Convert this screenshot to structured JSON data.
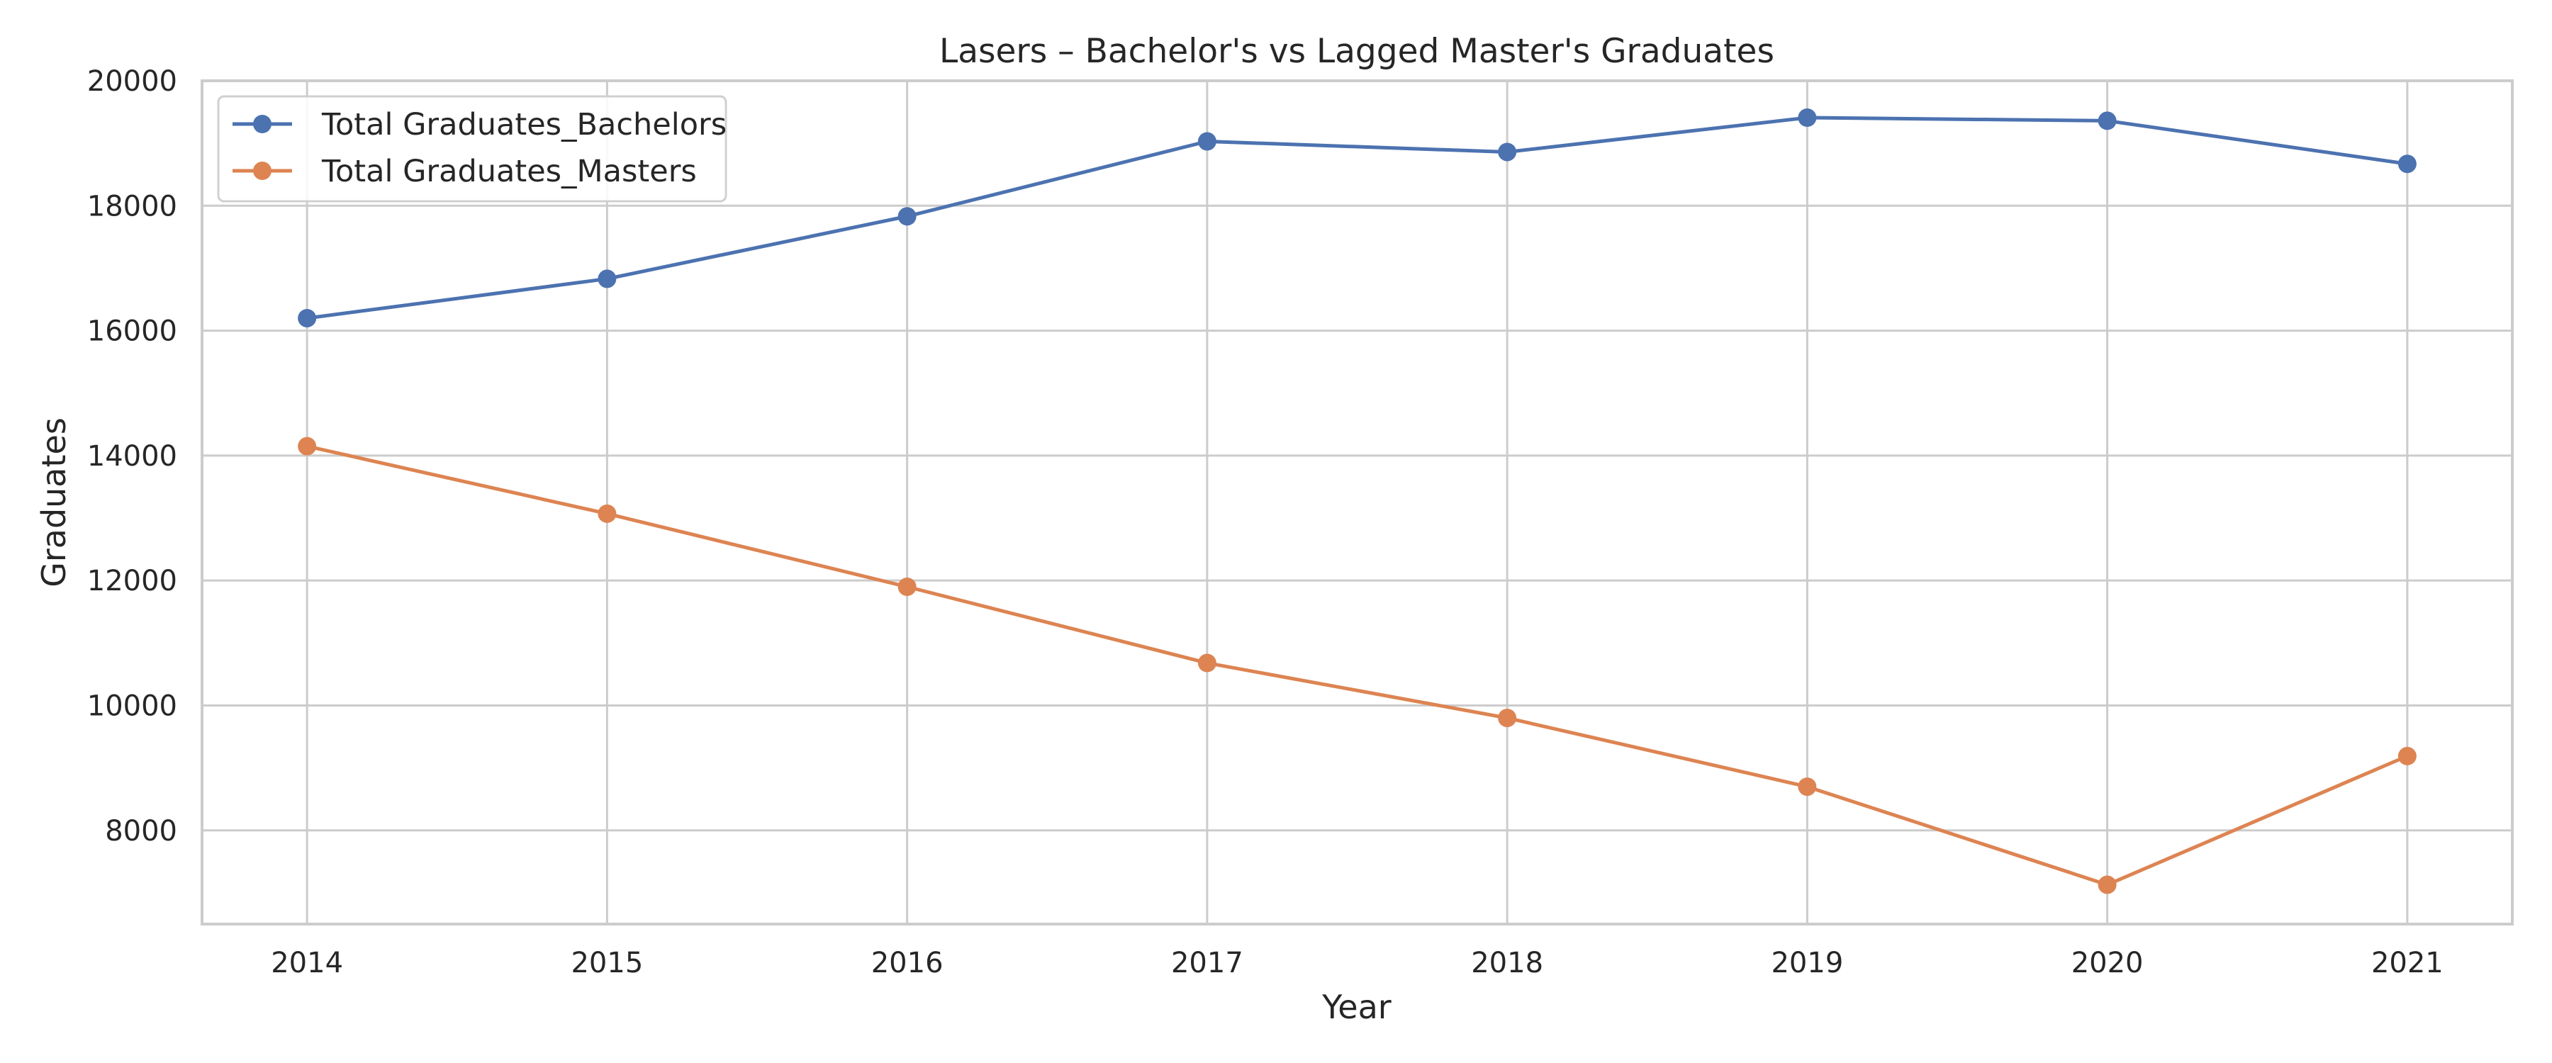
{
  "chart_data": {
    "type": "line",
    "title": "Lasers – Bachelor's vs Lagged Master's Graduates",
    "xlabel": "Year",
    "ylabel": "Graduates",
    "categories": [
      "2014",
      "2015",
      "2016",
      "2017",
      "2018",
      "2019",
      "2020",
      "2021"
    ],
    "x": [
      2014,
      2015,
      2016,
      2017,
      2018,
      2019,
      2020,
      2021
    ],
    "xlim": [
      2013.65,
      2021.35
    ],
    "ylim": [
      6500,
      20000
    ],
    "yticks": [
      8000,
      10000,
      12000,
      14000,
      16000,
      18000,
      20000
    ],
    "ytick_labels": [
      "8000",
      "10000",
      "12000",
      "14000",
      "16000",
      "18000",
      "20000"
    ],
    "grid": true,
    "legend_position": "top-left",
    "series": [
      {
        "name": "Total Graduates_Bachelors",
        "color": "#4C72B0",
        "marker": "circle",
        "values": [
          16200,
          16830,
          17830,
          19030,
          18860,
          19410,
          19360,
          18670
        ]
      },
      {
        "name": "Total Graduates_Masters",
        "color": "#DD8452",
        "marker": "circle",
        "values": [
          14150,
          13070,
          11900,
          10680,
          9800,
          8700,
          7130,
          9190
        ]
      }
    ]
  }
}
